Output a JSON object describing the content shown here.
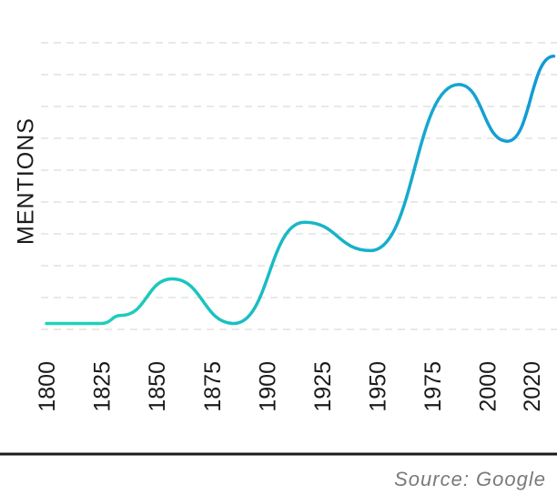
{
  "chart_data": {
    "type": "line",
    "title": "",
    "ylabel": "MENTIONS",
    "xlabel": "",
    "x": [
      1800,
      1825,
      1834,
      1857,
      1885,
      1917,
      1947,
      1987,
      2009,
      2030
    ],
    "values": [
      1.0,
      1.0,
      1.2,
      2.1,
      1.0,
      3.5,
      2.8,
      6.9,
      5.5,
      7.6
    ],
    "x_ticks": [
      "1800",
      "1825",
      "1850",
      "1875",
      "1900",
      "1925",
      "1950",
      "1975",
      "2000",
      "2020"
    ],
    "x_tick_values": [
      1800,
      1825,
      1850,
      1875,
      1900,
      1925,
      1950,
      1975,
      2000,
      2020
    ],
    "xlim": [
      1800,
      2029
    ],
    "ylim": [
      0,
      8.2
    ],
    "grid": true,
    "line_gradient": [
      "#1fd6b5",
      "#1199d6"
    ],
    "source": "Source: Google"
  }
}
